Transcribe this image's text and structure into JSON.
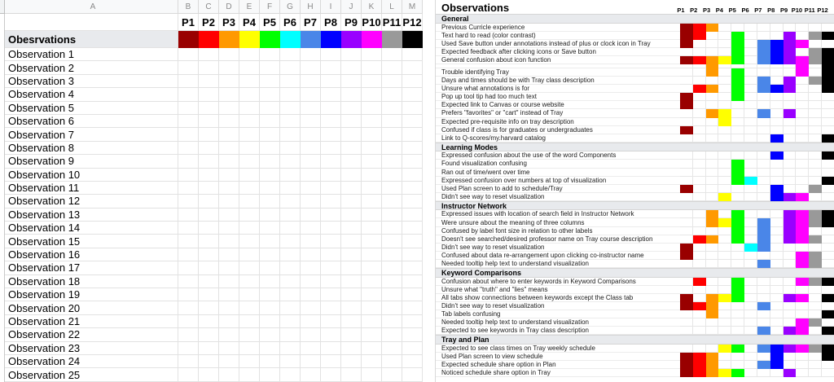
{
  "palette": {
    "P1": "#990000",
    "P2": "#ff0000",
    "P3": "#ff9900",
    "P4": "#ffff00",
    "P5": "#00ff00",
    "P6": "#00ffff",
    "P7": "#4a86e8",
    "P8": "#0000ff",
    "P9": "#9900ff",
    "P10": "#ff00ff",
    "P11": "#999999",
    "P12": "#000000"
  },
  "left_sheet": {
    "column_letters": [
      "A",
      "B",
      "C",
      "D",
      "E",
      "F",
      "G",
      "H",
      "I",
      "J",
      "K",
      "L",
      "M"
    ],
    "participant_labels": [
      "P1",
      "P2",
      "P3",
      "P4",
      "P5",
      "P6",
      "P7",
      "P8",
      "P9",
      "P10",
      "P11",
      "P12"
    ],
    "header_row_label": "Obesrvations",
    "observation_rows": [
      "Observation 1",
      "Observation 2",
      "Observation 3",
      "Observation 4",
      "Observation 5",
      "Observation 6",
      "Observation 7",
      "Observation 8",
      "Observation 9",
      "Observation 10",
      "Observation 11",
      "Observation 12",
      "Observation 13",
      "Observation 14",
      "Observation 15",
      "Observation 16",
      "Observation 17",
      "Observation 18",
      "Observation 19",
      "Observation 20",
      "Observation 21",
      "Observation 22",
      "Observation 23",
      "Observation 24",
      "Observation 25"
    ]
  },
  "right_sheet": {
    "title": "Observations",
    "participant_labels": [
      "P1",
      "P2",
      "P3",
      "P4",
      "P5",
      "P6",
      "P7",
      "P8",
      "P9",
      "P10",
      "P11",
      "P12"
    ],
    "sections": [
      {
        "name": "General",
        "rows": [
          {
            "label": "Previous Curricle experience",
            "cells": [
              1,
              2,
              3
            ]
          },
          {
            "label": "Text hard to read (color contrast)",
            "cells": [
              1,
              2,
              5,
              9,
              11,
              12
            ]
          },
          {
            "label": "Used Save button under annotations instead of plus or clock icon in Tray",
            "cells": [
              1,
              5,
              7,
              8,
              9,
              10
            ]
          },
          {
            "label": "Expected feedback after clicking icons or Save button",
            "cells": [
              5,
              7,
              8,
              9,
              11,
              12
            ]
          },
          {
            "label": "General confusion about icon function",
            "cells": [
              1,
              2,
              3,
              4,
              5,
              7,
              8,
              9,
              10,
              11,
              12
            ]
          },
          {
            "label": "",
            "spacer": true,
            "cells": [
              3,
              10,
              12
            ]
          },
          {
            "label": "Trouble identifying Tray",
            "cells": [
              3,
              5,
              10,
              12
            ]
          },
          {
            "label": "Days and times should be with Tray class description",
            "cells": [
              5,
              7,
              9,
              11,
              12
            ]
          },
          {
            "label": "Unsure what annotations is for",
            "cells": [
              2,
              3,
              5,
              7,
              8,
              9,
              12
            ]
          },
          {
            "label": "Pop up tool tip had too much text",
            "cells": [
              1,
              5
            ]
          },
          {
            "label": "Expected link to Canvas or course website",
            "cells": [
              1
            ]
          },
          {
            "label": "Prefers \"favorites\" or \"cart\" instead of Tray",
            "cells": [
              3,
              4,
              7,
              9
            ]
          },
          {
            "label": "Expected pre-requisite info on tray description",
            "cells": [
              4
            ]
          },
          {
            "label": "Confused if class is for graduates or undergraduates",
            "cells": [
              1
            ]
          },
          {
            "label": "Link to Q-scores/my.harvard catalog",
            "cells": [
              8,
              12
            ]
          }
        ]
      },
      {
        "name": "Learning Modes",
        "rows": [
          {
            "label": "Expressed confusion about the use of the word Components",
            "cells": [
              8,
              12
            ]
          },
          {
            "label": "Found visualization confusing",
            "cells": [
              5
            ]
          },
          {
            "label": "Ran out of time/went over time",
            "cells": [
              5
            ]
          },
          {
            "label": "Expressed confusion over numbers at top of visualization",
            "cells": [
              5,
              6,
              12
            ]
          },
          {
            "label": "Used Plan screen to add to schedule/Tray",
            "cells": [
              1,
              8,
              11
            ]
          },
          {
            "label": "Didn't see way to reset visualization",
            "cells": [
              4,
              8,
              9,
              10
            ]
          }
        ]
      },
      {
        "name": "Instructor Network",
        "rows": [
          {
            "label": "Expressed issues with location of search field in Instructor Network",
            "cells": [
              3,
              5,
              9,
              10,
              11,
              12
            ]
          },
          {
            "label": "Were unsure about the meaning of three columns",
            "cells": [
              3,
              4,
              5,
              7,
              9,
              10,
              11,
              12
            ]
          },
          {
            "label": "Confused by label font size in relation to other labels",
            "cells": [
              5,
              7,
              9,
              10
            ]
          },
          {
            "label": "Doesn't see searched/desired professor name on Tray course description",
            "cells": [
              2,
              3,
              5,
              7,
              9,
              10,
              11
            ]
          },
          {
            "label": "Didn't see way to reset visualization",
            "cells": [
              1,
              6,
              7
            ]
          },
          {
            "label": "Confused about data re-arrangement upon clicking co-instructor name",
            "cells": [
              1,
              10,
              11
            ]
          },
          {
            "label": "Needed tooltip help text to understand visualization",
            "cells": [
              7,
              10,
              11
            ]
          }
        ]
      },
      {
        "name": "Keyword Comparisons",
        "rows": [
          {
            "label": "Confusion about where to enter keywords in Keyword Comparisons",
            "cells": [
              2,
              5,
              10,
              11,
              12
            ]
          },
          {
            "label": "Unsure what \"truth\" and \"lies\" means",
            "cells": [
              5
            ]
          },
          {
            "label": "All tabs show connections between keywords except the Class tab",
            "cells": [
              1,
              3,
              4,
              5,
              9,
              10,
              12
            ]
          },
          {
            "label": "Didn't see way to reset visualization",
            "cells": [
              1,
              2,
              3,
              7
            ]
          },
          {
            "label": "Tab labels confusing",
            "cells": [
              3,
              12
            ]
          },
          {
            "label": "Needed tooltip help text to understand visualization",
            "cells": [
              10,
              11
            ]
          },
          {
            "label": "Expected to see keywords in Tray class description",
            "cells": [
              7,
              9,
              10,
              12
            ]
          }
        ]
      },
      {
        "name": "Tray and Plan",
        "rows": [
          {
            "label": "Expected to see class times on Tray weekly schedule",
            "cells": [
              4,
              5,
              7,
              8,
              9,
              10,
              11,
              12
            ]
          },
          {
            "label": "Used Plan screen to view schedule",
            "cells": [
              1,
              2,
              3,
              8,
              12
            ]
          },
          {
            "label": "Expected schedule share option in Plan",
            "cells": [
              1,
              2,
              3,
              7,
              8
            ]
          },
          {
            "label": "Noticed schedule share option in Tray",
            "cells": [
              1,
              2,
              3,
              4,
              5,
              9
            ]
          }
        ]
      }
    ]
  }
}
